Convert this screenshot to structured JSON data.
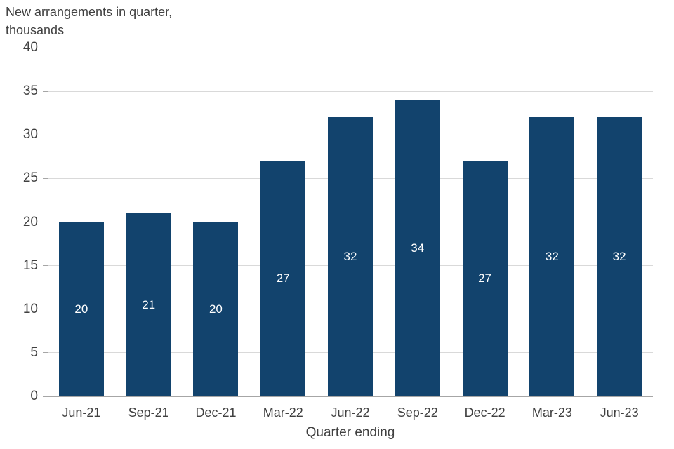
{
  "chart_data": {
    "type": "bar",
    "title_line1": "New arrangements in quarter,",
    "title_line2": "thousands",
    "xlabel": "Quarter ending",
    "ylabel": "",
    "categories": [
      "Jun-21",
      "Sep-21",
      "Dec-21",
      "Mar-22",
      "Jun-22",
      "Sep-22",
      "Dec-22",
      "Mar-23",
      "Jun-23"
    ],
    "values": [
      20,
      21,
      20,
      27,
      32,
      34,
      27,
      32,
      32
    ],
    "data_labels": [
      "20",
      "21",
      "20",
      "27",
      "32",
      "34",
      "27",
      "32",
      "32"
    ],
    "ylim": [
      0,
      40
    ],
    "ytick_step": 5,
    "ytick_labels": [
      "0",
      "5",
      "10",
      "15",
      "20",
      "25",
      "30",
      "35",
      "40"
    ],
    "grid": "horizontal",
    "legend": "none",
    "bar_color": "#12436D",
    "data_label_color": "#ffffff",
    "axis_text_color": "#404040",
    "gridline_color": "#d9d9d9"
  }
}
